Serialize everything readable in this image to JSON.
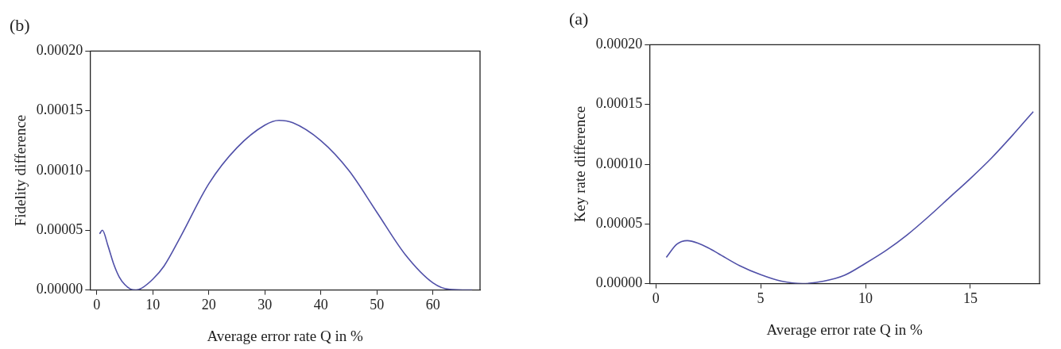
{
  "chart_data": [
    {
      "type": "line",
      "title": "(b)",
      "xlabel": "Average error rate Q in %",
      "ylabel": "Fidelity difference",
      "xlim": [
        -1.2,
        68.4
      ],
      "xticks": [
        0,
        10,
        20,
        30,
        40,
        50,
        60
      ],
      "ylim": [
        0,
        0.0002
      ],
      "yticks": [
        {
          "value": 0,
          "label": "0.00000"
        },
        {
          "value": 5e-05,
          "label": "0.00005"
        },
        {
          "value": 0.0001,
          "label": "0.00010"
        },
        {
          "value": 0.00015,
          "label": "0.00015"
        },
        {
          "value": 0.0002,
          "label": "0.00020"
        }
      ],
      "grid": false,
      "legend": false,
      "marker": "none",
      "line_style": "solid",
      "series": [
        {
          "color": "#5050a8",
          "x": [
            0.5,
            1,
            2,
            3,
            4,
            5,
            6,
            7,
            8,
            10,
            12,
            15,
            20,
            25,
            30,
            32.5,
            35,
            40,
            45,
            50,
            55,
            60,
            63,
            67
          ],
          "values": [
            4.7e-05,
            5e-05,
            3.7e-05,
            2.2e-05,
            1.1e-05,
            4.5e-06,
            8e-07,
            0,
            1.5e-06,
            9e-06,
            2e-05,
            4.5e-05,
            8.9e-05,
            0.000119,
            0.000138,
            0.000142,
            0.00014,
            0.000125,
            0.0001,
            6.5e-05,
            3e-05,
            6e-06,
            5e-07,
            0
          ]
        }
      ]
    },
    {
      "type": "line",
      "title": "(a)",
      "xlabel": "Average error rate Q in %",
      "ylabel": "Key rate difference",
      "xlim": [
        -0.3,
        18.3
      ],
      "xticks": [
        0,
        5,
        10,
        15
      ],
      "ylim": [
        0,
        0.0002
      ],
      "yticks": [
        {
          "value": 0,
          "label": "0.00000"
        },
        {
          "value": 5e-05,
          "label": "0.00005"
        },
        {
          "value": 0.0001,
          "label": "0.00010"
        },
        {
          "value": 0.00015,
          "label": "0.00015"
        },
        {
          "value": 0.0002,
          "label": "0.00020"
        }
      ],
      "grid": false,
      "legend": false,
      "marker": "none",
      "line_style": "solid",
      "series": [
        {
          "color": "#5050a8",
          "x": [
            0.5,
            1,
            1.5,
            2,
            2.5,
            3,
            4,
            5,
            6,
            7,
            8,
            9,
            10,
            11,
            12,
            13,
            14,
            15,
            16,
            17,
            18
          ],
          "values": [
            2.2e-05,
            3.3e-05,
            3.6e-05,
            3.4e-05,
            3e-05,
            2.5e-05,
            1.5e-05,
            7.5e-06,
            2e-06,
            0,
            2e-06,
            7e-06,
            1.7e-05,
            2.8e-05,
            4.1e-05,
            5.6e-05,
            7.2e-05,
            8.8e-05,
            0.000105,
            0.000124,
            0.000144
          ]
        }
      ]
    }
  ]
}
